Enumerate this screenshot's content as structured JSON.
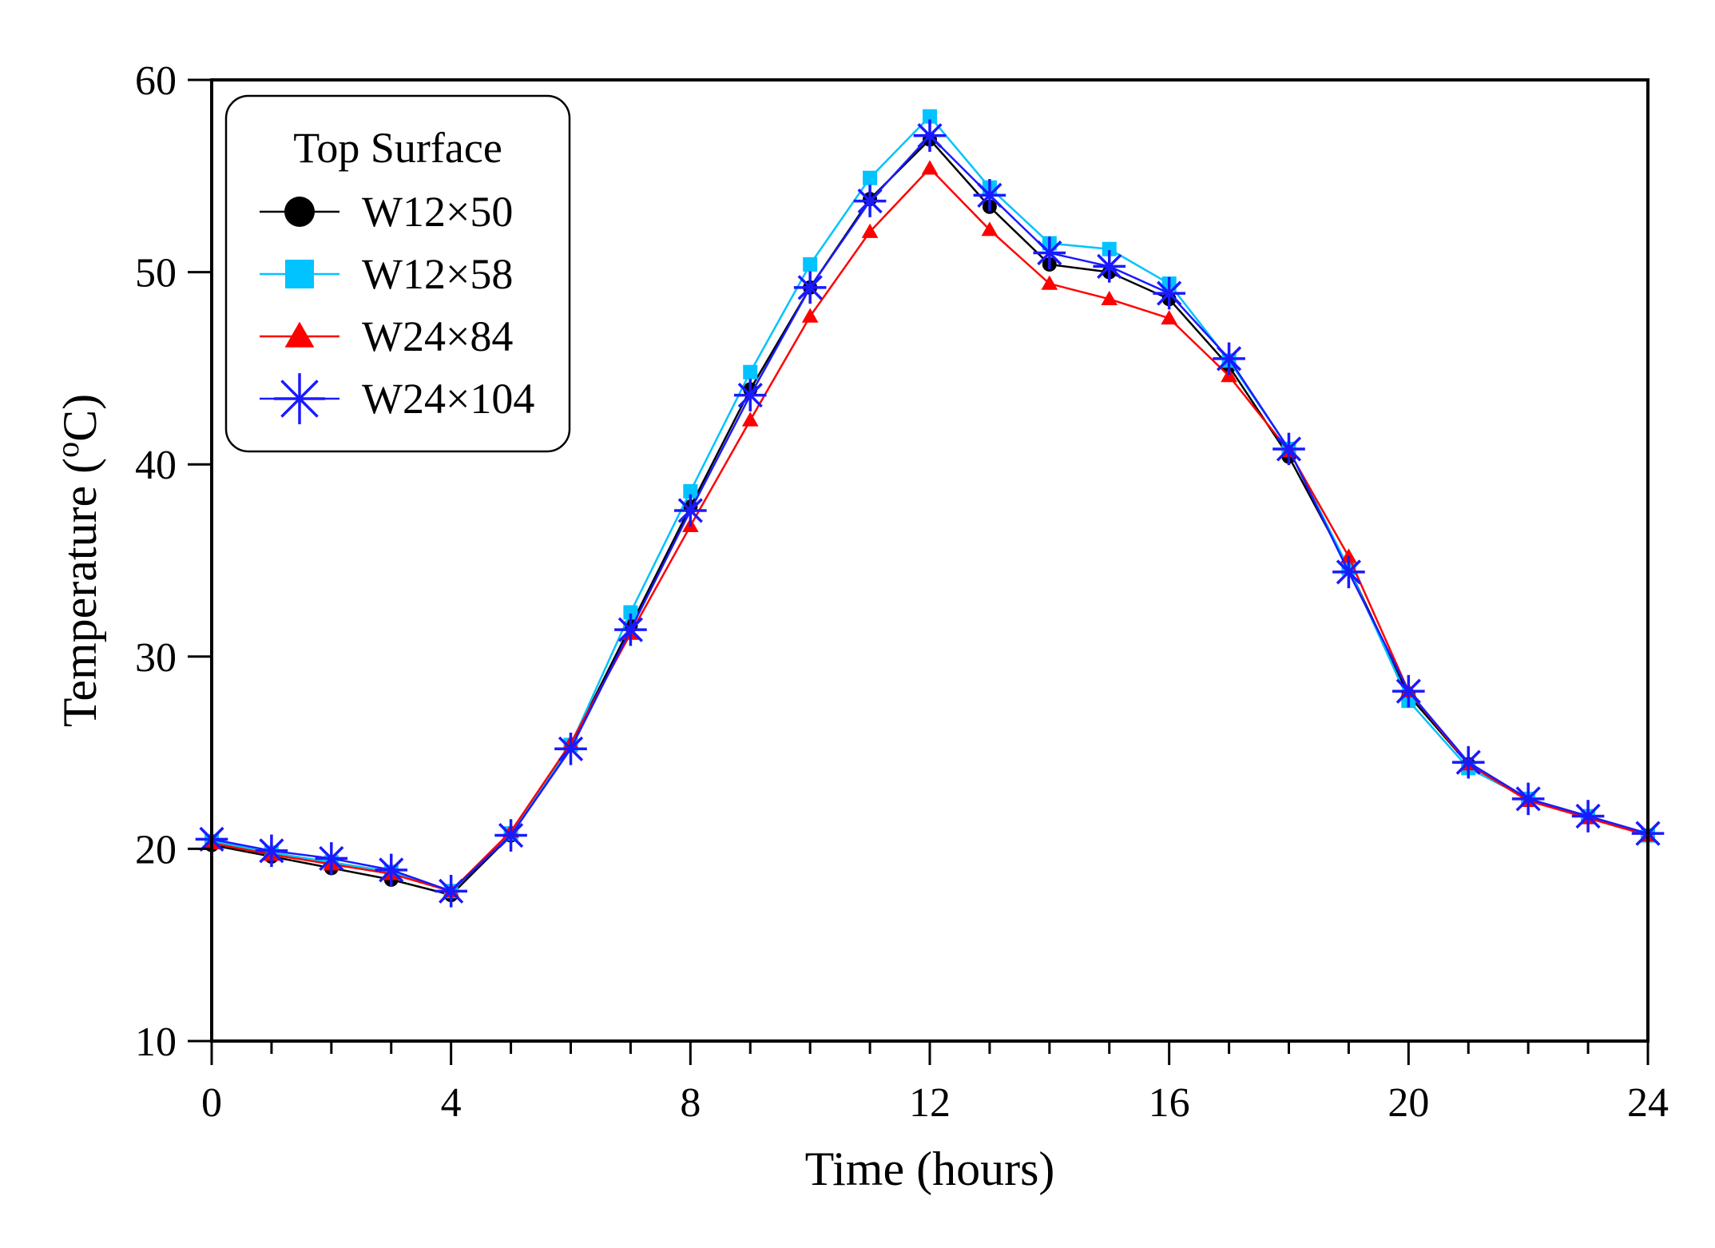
{
  "chart_data": {
    "type": "line",
    "title": "",
    "xlabel": "Time (hours)",
    "ylabel": "Temperature (",
    "ylabel_sup": "o",
    "ylabel_unit": "C)",
    "xlim": [
      0,
      24
    ],
    "ylim": [
      10,
      60
    ],
    "xticks": [
      0,
      4,
      8,
      12,
      16,
      20,
      24
    ],
    "xtick_labels": [
      "0",
      "4",
      "8",
      "12",
      "16",
      "20",
      "24"
    ],
    "xminor_step": 1,
    "yticks": [
      10,
      20,
      30,
      40,
      50,
      60
    ],
    "ytick_labels": [
      "10",
      "20",
      "30",
      "40",
      "50",
      "60"
    ],
    "grid": false,
    "legend": {
      "title": "Top Surface",
      "position": "top-left"
    },
    "x": [
      0,
      1,
      2,
      3,
      4,
      5,
      6,
      7,
      8,
      9,
      10,
      11,
      12,
      13,
      14,
      15,
      16,
      17,
      18,
      19,
      20,
      21,
      22,
      23,
      24
    ],
    "series": [
      {
        "name": "W12×50",
        "color": "#000000",
        "marker": "circle",
        "values": [
          20.2,
          19.6,
          19.0,
          18.4,
          17.6,
          20.7,
          25.4,
          31.6,
          37.8,
          43.9,
          49.2,
          53.8,
          56.9,
          53.4,
          50.4,
          50.0,
          48.6,
          45.1,
          40.4,
          34.6,
          28.0,
          24.4,
          22.6,
          21.7,
          20.7
        ]
      },
      {
        "name": "W12×58",
        "color": "#00c3ff",
        "marker": "square",
        "values": [
          20.4,
          19.8,
          19.3,
          18.8,
          17.8,
          20.8,
          25.4,
          32.3,
          38.6,
          44.8,
          50.4,
          54.9,
          58.1,
          54.4,
          51.5,
          51.2,
          49.4,
          45.4,
          40.8,
          34.6,
          27.7,
          24.2,
          22.6,
          21.7,
          20.7
        ]
      },
      {
        "name": "W24×84",
        "color": "#ff0000",
        "marker": "triangle",
        "values": [
          20.3,
          19.7,
          19.2,
          18.7,
          17.8,
          20.9,
          25.5,
          31.2,
          36.8,
          42.3,
          47.7,
          52.1,
          55.4,
          52.2,
          49.4,
          48.6,
          47.6,
          44.6,
          40.7,
          35.2,
          28.2,
          24.4,
          22.5,
          21.6,
          20.7
        ]
      },
      {
        "name": "W24×104",
        "color": "#1a1aff",
        "marker": "asterisk",
        "values": [
          20.5,
          19.9,
          19.5,
          18.9,
          17.8,
          20.7,
          25.2,
          31.4,
          37.6,
          43.6,
          49.2,
          53.7,
          57.1,
          54.0,
          51.0,
          50.3,
          48.9,
          45.5,
          40.8,
          34.4,
          28.2,
          24.5,
          22.6,
          21.7,
          20.8
        ]
      }
    ]
  }
}
